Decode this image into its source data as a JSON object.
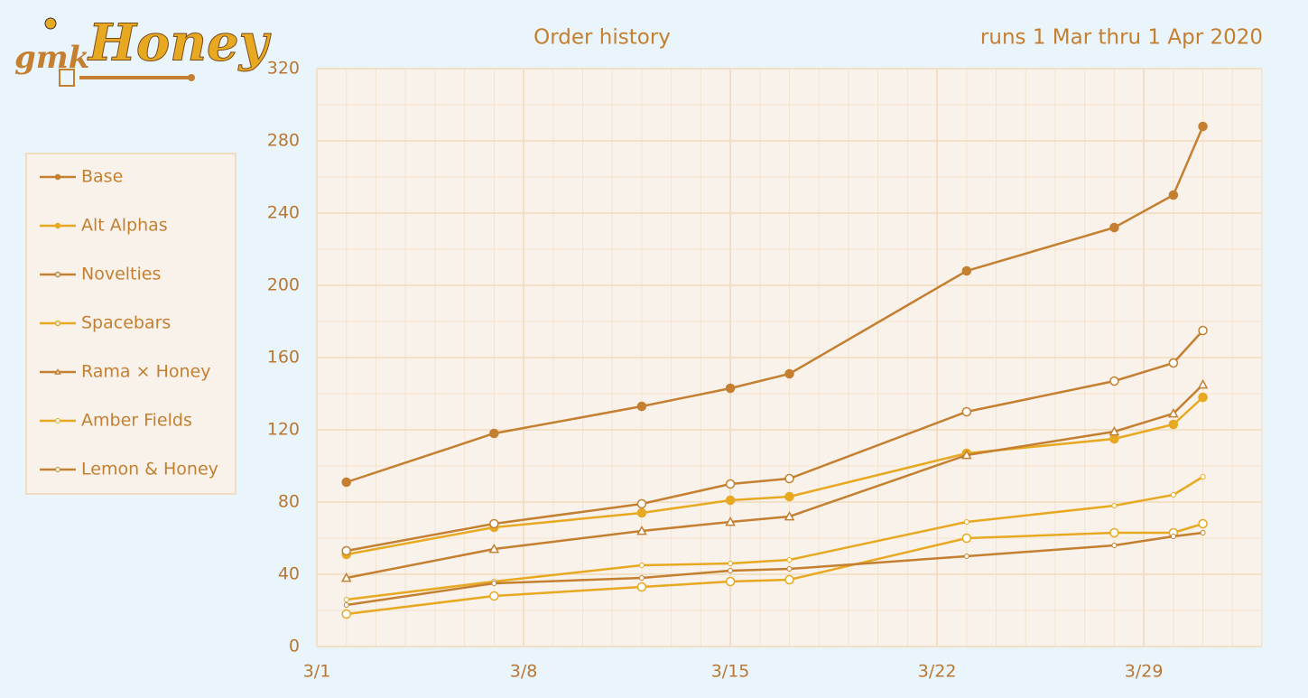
{
  "logo": {
    "prefix": "gmk",
    "name": "Honey"
  },
  "chart_data": {
    "type": "line",
    "title": "Order history",
    "subtitle": "runs 1 Mar thru 1 Apr 2020",
    "x": [
      "3/2",
      "3/7",
      "3/12",
      "3/15",
      "3/17",
      "3/23",
      "3/28",
      "3/30",
      "3/31"
    ],
    "xlim": [
      "3/1",
      "4/2"
    ],
    "xticks": [
      "3/1",
      "3/8",
      "3/15",
      "3/22",
      "3/29"
    ],
    "ylim": [
      0,
      320
    ],
    "yticks": [
      0,
      40,
      80,
      120,
      160,
      200,
      240,
      280,
      320
    ],
    "grid": true,
    "series": [
      {
        "name": "Base",
        "color": "#c47f31",
        "marker": "circle",
        "values": [
          91,
          118,
          133,
          143,
          151,
          208,
          232,
          250,
          288
        ]
      },
      {
        "name": "Alt Alphas",
        "color": "#e8a922",
        "marker": "circle",
        "values": [
          51,
          66,
          74,
          81,
          83,
          107,
          115,
          123,
          138
        ]
      },
      {
        "name": "Novelties",
        "color": "#c47f31",
        "marker": "open-circle",
        "values": [
          53,
          68,
          79,
          90,
          93,
          130,
          147,
          157,
          175
        ]
      },
      {
        "name": "Spacebars",
        "color": "#e8a922",
        "marker": "open-circle",
        "values": [
          18,
          28,
          33,
          36,
          37,
          60,
          63,
          63,
          68
        ]
      },
      {
        "name": "Rama × Honey",
        "color": "#c47f31",
        "marker": "open-triangle",
        "values": [
          38,
          54,
          64,
          69,
          72,
          106,
          119,
          129,
          145
        ]
      },
      {
        "name": "Amber Fields",
        "color": "#e8a922",
        "marker": "dot",
        "values": [
          26,
          36,
          45,
          46,
          48,
          69,
          78,
          84,
          94
        ]
      },
      {
        "name": "Lemon & Honey",
        "color": "#c47f31",
        "marker": "dot",
        "values": [
          23,
          35,
          38,
          42,
          43,
          50,
          56,
          61,
          63
        ]
      }
    ]
  }
}
